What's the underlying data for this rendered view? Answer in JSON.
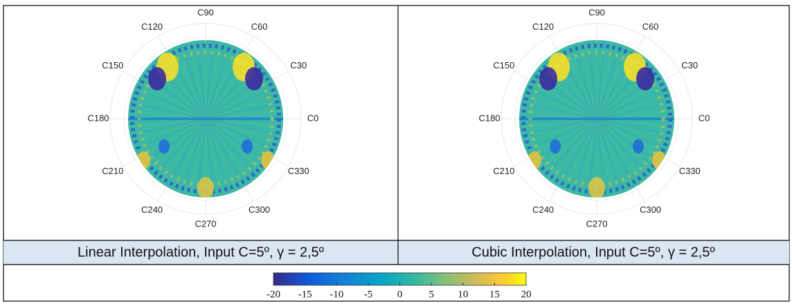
{
  "panels": [
    {
      "caption": "Linear Interpolation, Input C=5º, γ = 2,5º",
      "angle_labels": [
        "C0",
        "C30",
        "C60",
        "C90",
        "C120",
        "C150",
        "C180",
        "C210",
        "C240",
        "C270",
        "C300",
        "C330"
      ]
    },
    {
      "caption": "Cubic Interpolation, Input C=5º, γ = 2,5º",
      "angle_labels": [
        "C0",
        "C30",
        "C60",
        "C90",
        "C120",
        "C150",
        "C180",
        "C210",
        "C240",
        "C270",
        "C300",
        "C330"
      ]
    }
  ],
  "colorbar": {
    "lim": [
      -20,
      20
    ],
    "ticks": [
      -20,
      -15,
      -10,
      -5,
      0,
      5,
      10,
      15,
      20
    ]
  }
}
